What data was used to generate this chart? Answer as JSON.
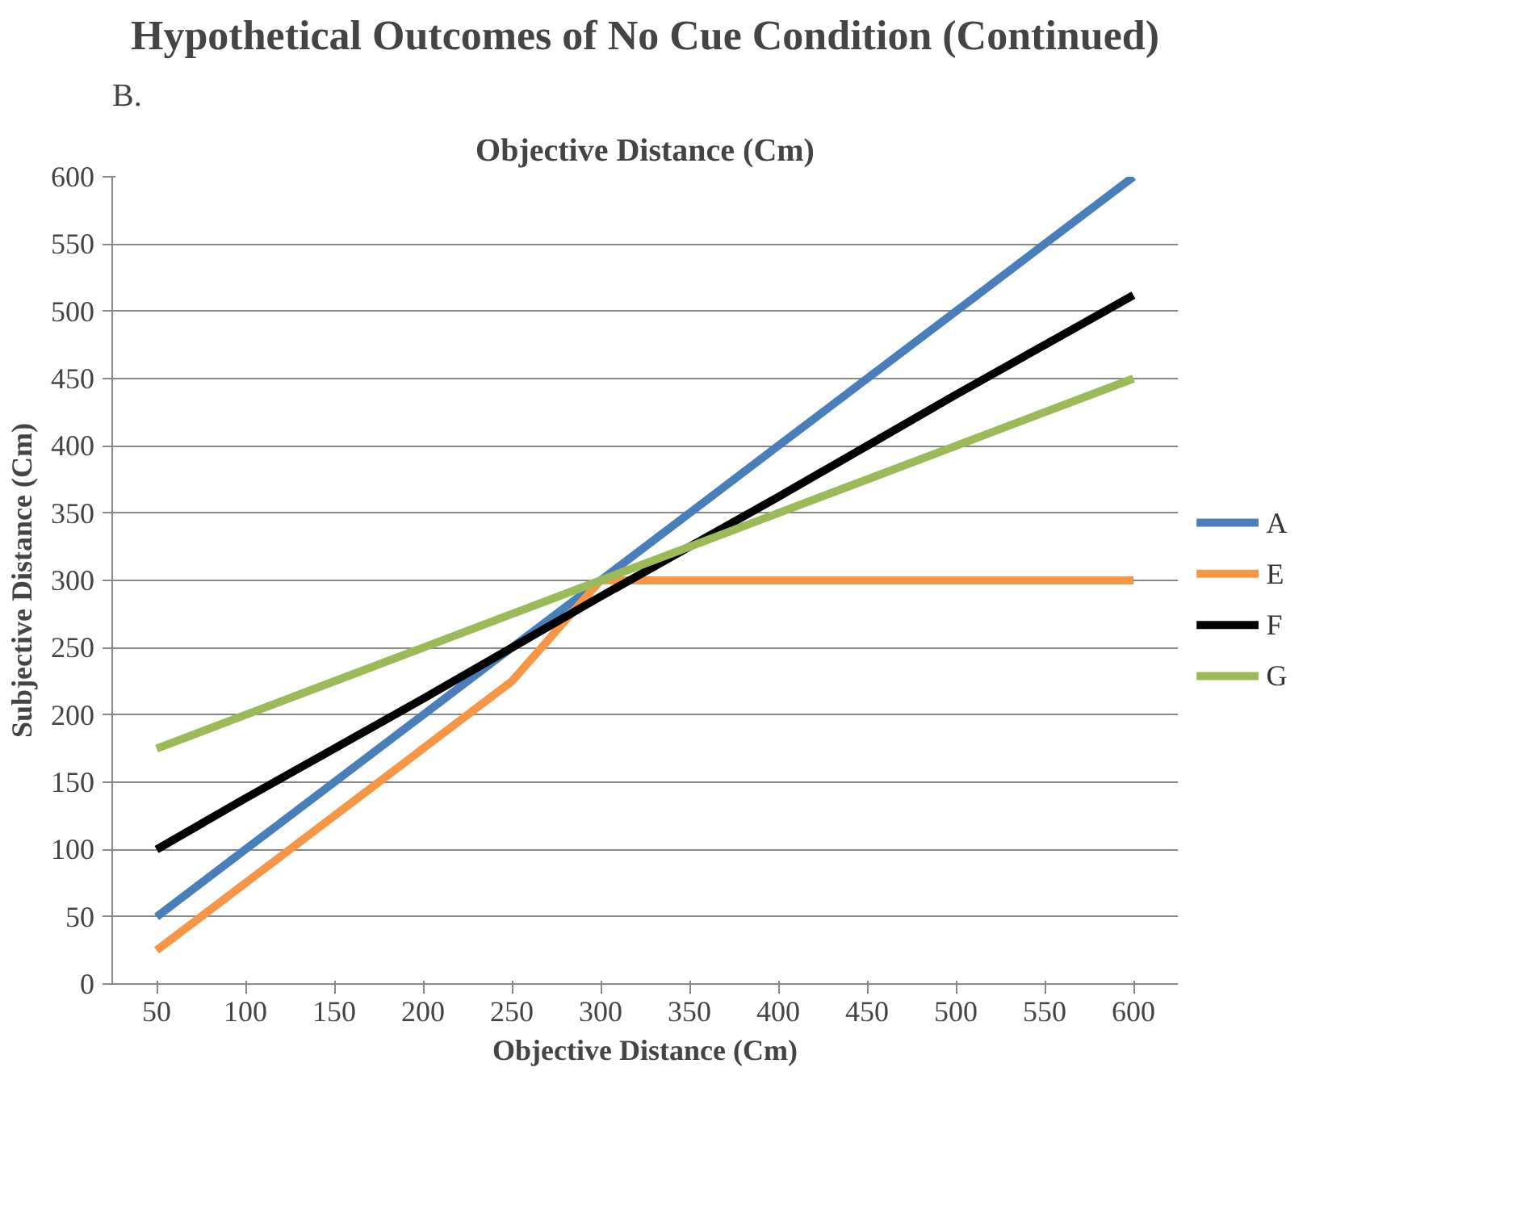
{
  "chart_data": {
    "type": "line",
    "title": "Hypothetical Outcomes of No Cue Condition (Continued)",
    "xlabel": "Objective Distance (Cm)",
    "ylabel": "Subjective Distance (Cm)",
    "annotations": [
      "B.",
      "Objective Distance (Cm)"
    ],
    "categories": [
      "50",
      "100",
      "150",
      "200",
      "250",
      "300",
      "350",
      "400",
      "450",
      "500",
      "550",
      "600"
    ],
    "series": [
      {
        "name": "A",
        "color": "#4a7ebb",
        "values": [
          50,
          100,
          150,
          200,
          250,
          300,
          350,
          400,
          450,
          500,
          550,
          600
        ]
      },
      {
        "name": "E",
        "color": "#f79646",
        "values": [
          25,
          75,
          125,
          175,
          225,
          300,
          300,
          300,
          300,
          300,
          300,
          300
        ]
      },
      {
        "name": "F",
        "color": "#000000",
        "values": [
          100,
          138,
          175,
          212,
          250,
          288,
          325,
          362,
          400,
          438,
          475,
          512
        ]
      },
      {
        "name": "G",
        "color": "#9bbb59",
        "values": [
          175,
          200,
          225,
          250,
          275,
          300,
          325,
          350,
          375,
          400,
          425,
          450
        ]
      }
    ],
    "ylim": [
      0,
      600
    ],
    "yticks": [
      0,
      50,
      100,
      150,
      200,
      250,
      300,
      350,
      400,
      450,
      500,
      550,
      600
    ],
    "grid": "y",
    "legend": "right",
    "marker": "none",
    "line_style": "solid"
  }
}
